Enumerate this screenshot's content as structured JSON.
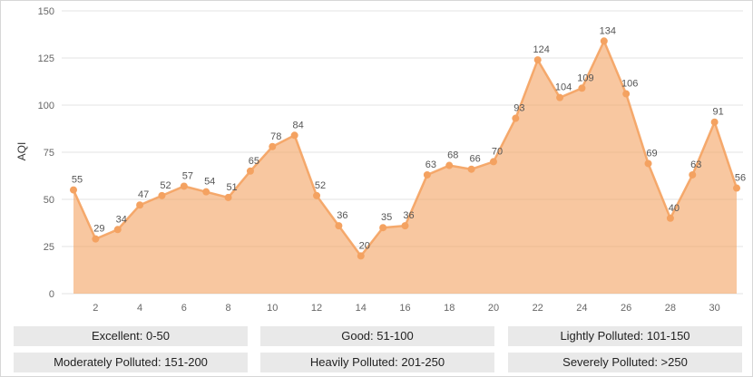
{
  "chart_data": {
    "type": "area",
    "ylabel": "AQI",
    "xlabel": "",
    "ylim": [
      0,
      150
    ],
    "yticks": [
      0,
      25,
      50,
      75,
      100,
      125,
      150
    ],
    "xticks": [
      2,
      4,
      6,
      8,
      10,
      12,
      14,
      16,
      18,
      20,
      22,
      24,
      26,
      28,
      30
    ],
    "grid": true,
    "color": "#f4a261",
    "x": [
      1,
      2,
      3,
      4,
      5,
      6,
      7,
      8,
      9,
      10,
      11,
      12,
      13,
      14,
      15,
      16,
      17,
      18,
      19,
      20,
      21,
      22,
      23,
      24,
      25,
      26,
      27,
      28,
      29,
      30,
      31
    ],
    "values": [
      55,
      29,
      34,
      47,
      52,
      57,
      54,
      51,
      65,
      78,
      84,
      52,
      36,
      20,
      35,
      36,
      63,
      68,
      66,
      70,
      93,
      124,
      104,
      109,
      134,
      106,
      69,
      40,
      63,
      91,
      56
    ]
  },
  "legend": [
    "Excellent: 0-50",
    "Good: 51-100",
    "Lightly Polluted: 101-150",
    "Moderately Polluted: 151-200",
    "Heavily Polluted: 201-250",
    "Severely Polluted: >250"
  ]
}
